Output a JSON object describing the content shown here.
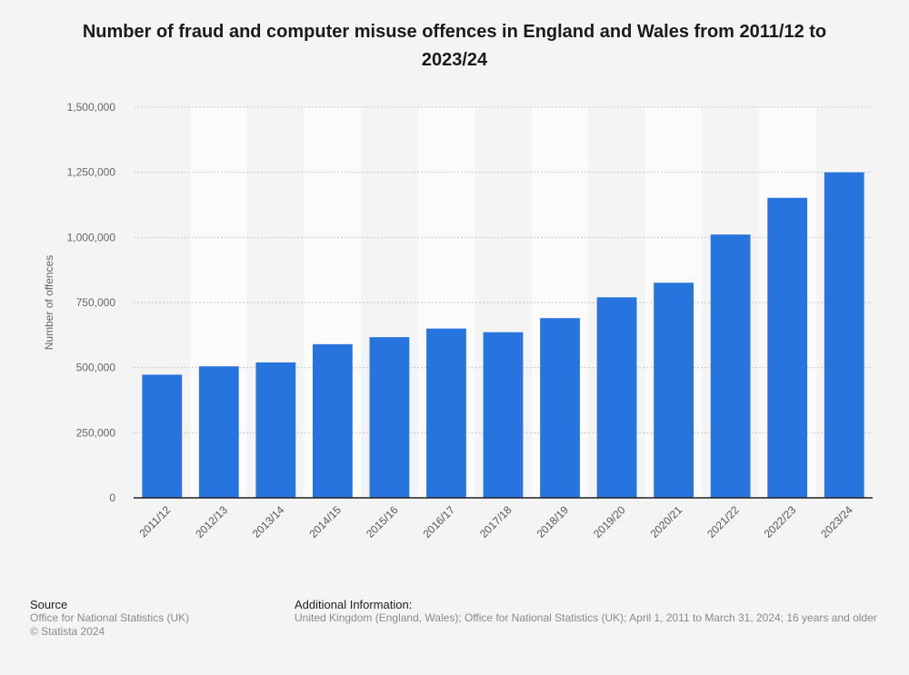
{
  "chart_data": {
    "type": "bar",
    "title": "Number of fraud and computer misuse offences in England and Wales from 2011/12 to 2023/24",
    "ylabel": "Number of offences",
    "xlabel": "",
    "ylim": [
      0,
      1500000
    ],
    "yticks": [
      0,
      250000,
      500000,
      750000,
      1000000,
      1250000,
      1500000
    ],
    "ytick_labels": [
      "0",
      "250,000",
      "500,000",
      "750,000",
      "1,000,000",
      "1,250,000",
      "1,500,000"
    ],
    "categories": [
      "2011/12",
      "2012/13",
      "2013/14",
      "2014/15",
      "2015/16",
      "2016/17",
      "2017/18",
      "2018/19",
      "2019/20",
      "2020/21",
      "2021/22",
      "2022/23",
      "2023/24"
    ],
    "values": [
      473000,
      505000,
      520000,
      590000,
      617000,
      650000,
      636000,
      690000,
      770000,
      826000,
      1011000,
      1152000,
      1250000
    ],
    "grid": true,
    "colors": {
      "bar": "#2774de",
      "grid": "#c8c8c8",
      "band": "#fbfbfb",
      "axis": "#222222"
    }
  },
  "footer": {
    "source_heading": "Source",
    "source_line1": "Office for National Statistics (UK)",
    "source_line2": "© Statista 2024",
    "info_heading": "Additional Information:",
    "info_text": "United Kingdom (England, Wales); Office for National Statistics (UK); April 1, 2011 to March 31, 2024; 16 years and older"
  }
}
